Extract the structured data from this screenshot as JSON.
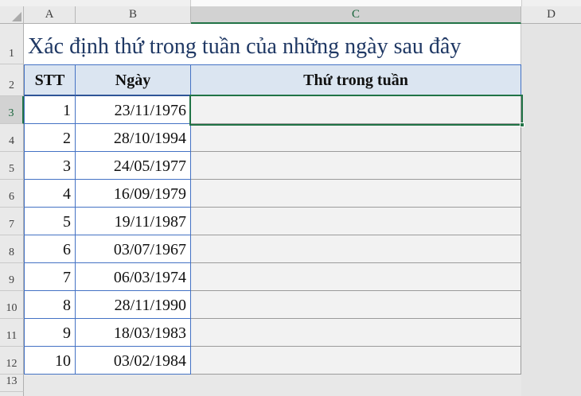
{
  "window": {
    "kind": "spreadsheet-grid"
  },
  "colors": {
    "accent_green": "#217346",
    "table_border_blue": "#4472c4",
    "table_border_blue_thick": "#2f5597",
    "header_row_fill": "#dbe5f1",
    "title_text": "#1f3864",
    "weekday_column_fill": "#f2f2f2",
    "weekday_column_border": "#9b9b9b",
    "outside_grid_grey": "#e6e6e6"
  },
  "column_headers": {
    "items": [
      "A",
      "B",
      "C",
      "D"
    ],
    "selected": "C"
  },
  "row_headers": {
    "items": [
      "1",
      "2",
      "3",
      "4",
      "5",
      "6",
      "7",
      "8",
      "9",
      "10",
      "11",
      "12",
      "13"
    ],
    "selected": "3"
  },
  "sheet": {
    "title_cell": {
      "ref": "A1",
      "text": "Xác định thứ trong tuần của những ngày sau đây"
    },
    "header_row": {
      "stt": "STT",
      "date": "Ngày",
      "weekday": "Thứ trong tuần"
    },
    "rows": [
      {
        "stt": "1",
        "date": "23/11/1976",
        "weekday": ""
      },
      {
        "stt": "2",
        "date": "28/10/1994",
        "weekday": ""
      },
      {
        "stt": "3",
        "date": "24/05/1977",
        "weekday": ""
      },
      {
        "stt": "4",
        "date": "16/09/1979",
        "weekday": ""
      },
      {
        "stt": "5",
        "date": "19/11/1987",
        "weekday": ""
      },
      {
        "stt": "6",
        "date": "03/07/1967",
        "weekday": ""
      },
      {
        "stt": "7",
        "date": "06/03/1974",
        "weekday": ""
      },
      {
        "stt": "8",
        "date": "28/11/1990",
        "weekday": ""
      },
      {
        "stt": "9",
        "date": "18/03/1983",
        "weekday": ""
      },
      {
        "stt": "10",
        "date": "03/02/1984",
        "weekday": ""
      }
    ],
    "selection": {
      "active_cell": "C3"
    }
  }
}
